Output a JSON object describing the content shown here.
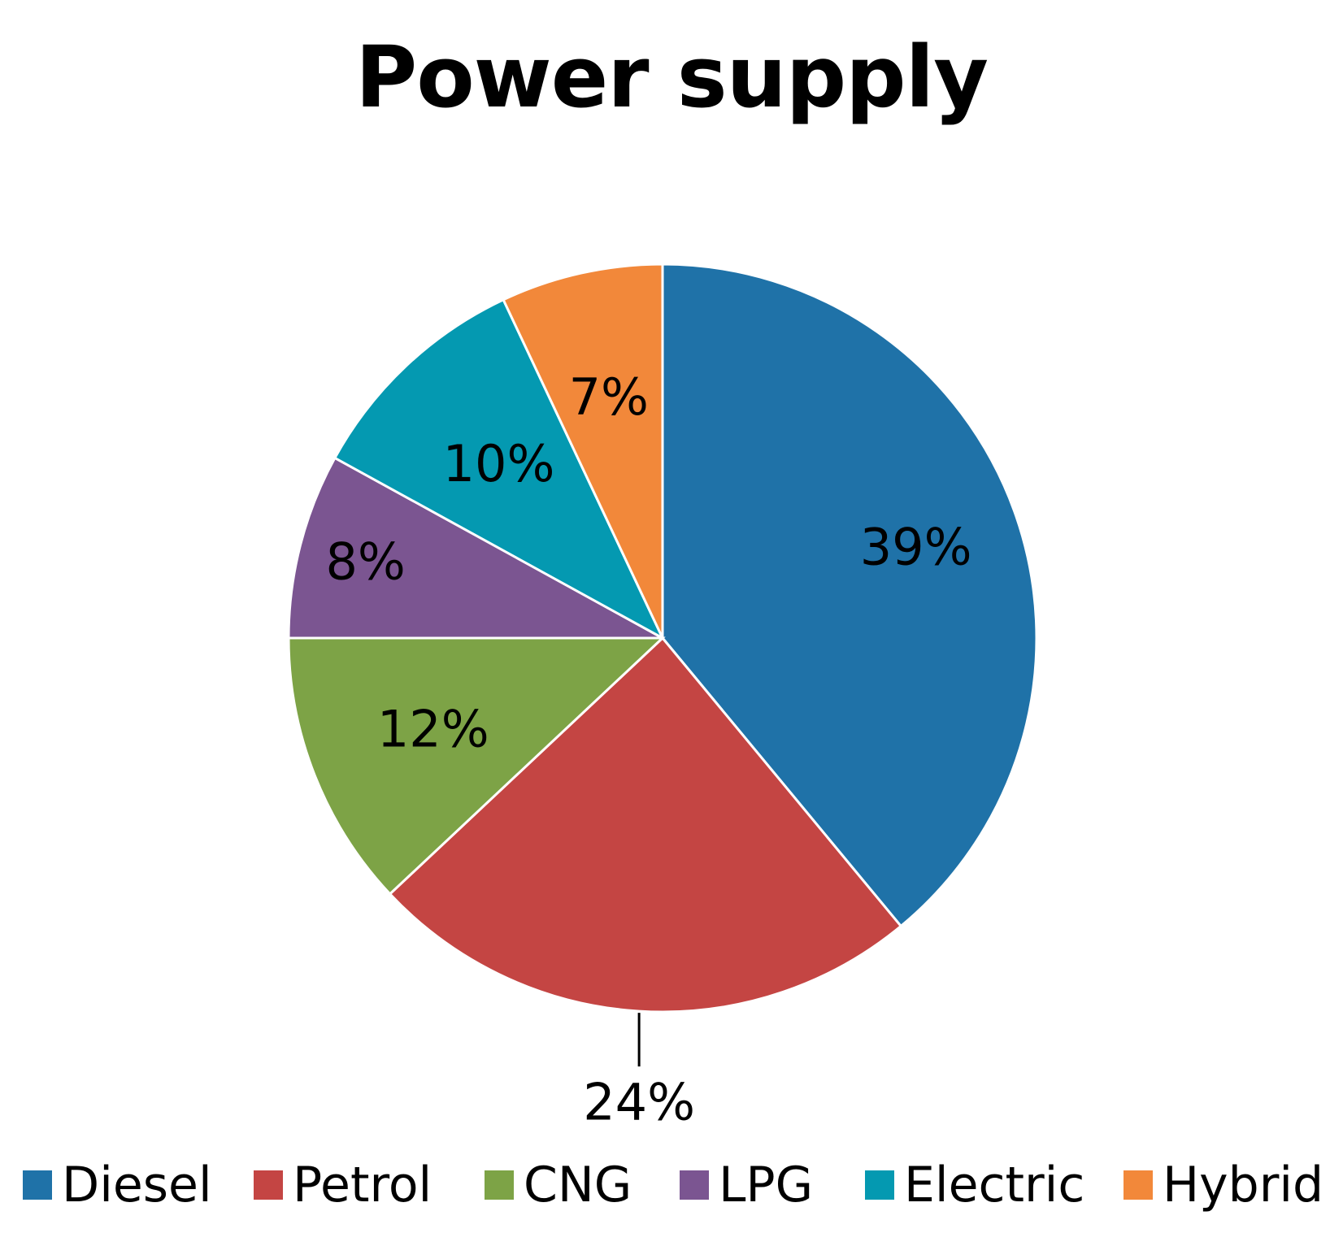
{
  "chart_data": {
    "type": "pie",
    "title": "Power supply",
    "slices": [
      {
        "label": "Diesel",
        "value": 39,
        "display": "39%",
        "color": "#1f72a8"
      },
      {
        "label": "Petrol",
        "value": 24,
        "display": "24%",
        "color": "#c44543"
      },
      {
        "label": "CNG",
        "value": 12,
        "display": "12%",
        "color": "#7da346"
      },
      {
        "label": "LPG",
        "value": 8,
        "display": "8%",
        "color": "#7b5591"
      },
      {
        "label": "Electric",
        "value": 10,
        "display": "10%",
        "color": "#0499b1"
      },
      {
        "label": "Hybrid",
        "value": 7,
        "display": "7%",
        "color": "#f2883a"
      }
    ],
    "legend_position": "bottom",
    "start_angle": "12 o'clock",
    "direction": "clockwise"
  }
}
